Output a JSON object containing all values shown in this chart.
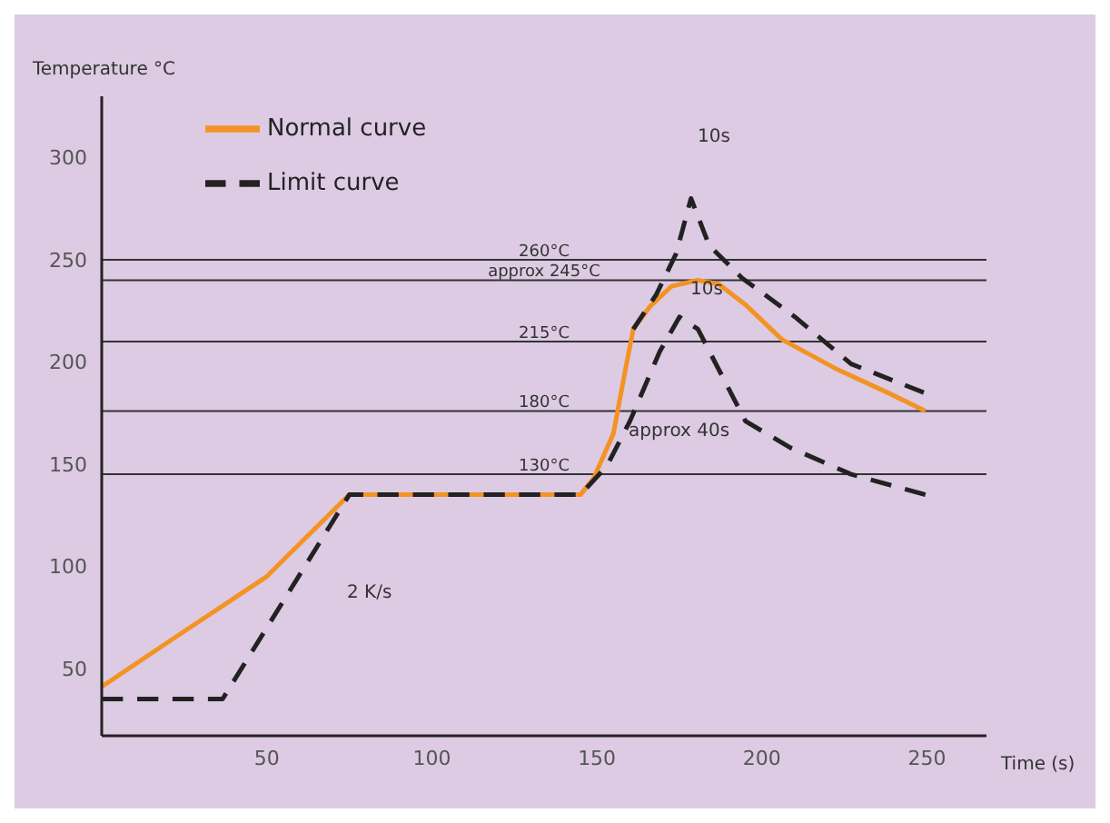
{
  "chart_data": {
    "type": "line",
    "xlabel": "Time (s)",
    "ylabel": "Temperature °C",
    "xlim": [
      0,
      268
    ],
    "xticks": [
      50,
      100,
      150,
      200,
      250
    ],
    "ylim": [
      17,
      330
    ],
    "yticks": [
      50,
      100,
      150,
      200,
      250,
      300
    ],
    "grid": false,
    "legend": "top left",
    "marker": "none",
    "series": [
      {
        "name": "Normal curve",
        "color": "#f39323",
        "line_style": "solid",
        "x": [
          0,
          23,
          50,
          75,
          145,
          149,
          155,
          158.6,
          161,
          166,
          172.6,
          180.6,
          187,
          195,
          206,
          222,
          238,
          249.5
        ],
        "values": [
          41,
          66,
          95,
          135,
          135,
          143,
          165,
          196,
          216,
          227,
          237,
          240,
          238,
          228,
          211,
          197,
          185,
          176
        ]
      },
      {
        "name": "Limit curve",
        "color": "#222222",
        "line_style": "dashed",
        "x": [
          0,
          36.6,
          75,
          145,
          153,
          160,
          169,
          175,
          180.6,
          195,
          208.6,
          227,
          249.5
        ],
        "values": [
          35,
          35,
          135,
          135,
          149,
          171,
          205,
          222,
          216,
          171,
          158,
          145,
          135
        ]
      },
      {
        "color": "#222222",
        "line_style": "dashed",
        "x": [
          161,
          168,
          174,
          178.5,
          184,
          194,
          210,
          227,
          249
        ],
        "values": [
          216,
          233,
          253,
          280,
          257,
          241,
          222,
          199,
          185
        ]
      }
    ],
    "ref_lines": [
      {
        "axis": "y",
        "value": 250,
        "label": "260°C",
        "color": "#333333"
      },
      {
        "axis": "y",
        "value": 240,
        "label": "approx 245°C",
        "color": "#333333"
      },
      {
        "axis": "y",
        "value": 210,
        "label": "215°C",
        "color": "#333333"
      },
      {
        "axis": "y",
        "value": 176,
        "label": "180°C",
        "color": "#333333"
      },
      {
        "axis": "y",
        "value": 145,
        "label": "130°C",
        "color": "#333333"
      }
    ],
    "annotations": [
      "10s",
      "10s",
      "approx 40s",
      "2 K/s"
    ]
  }
}
